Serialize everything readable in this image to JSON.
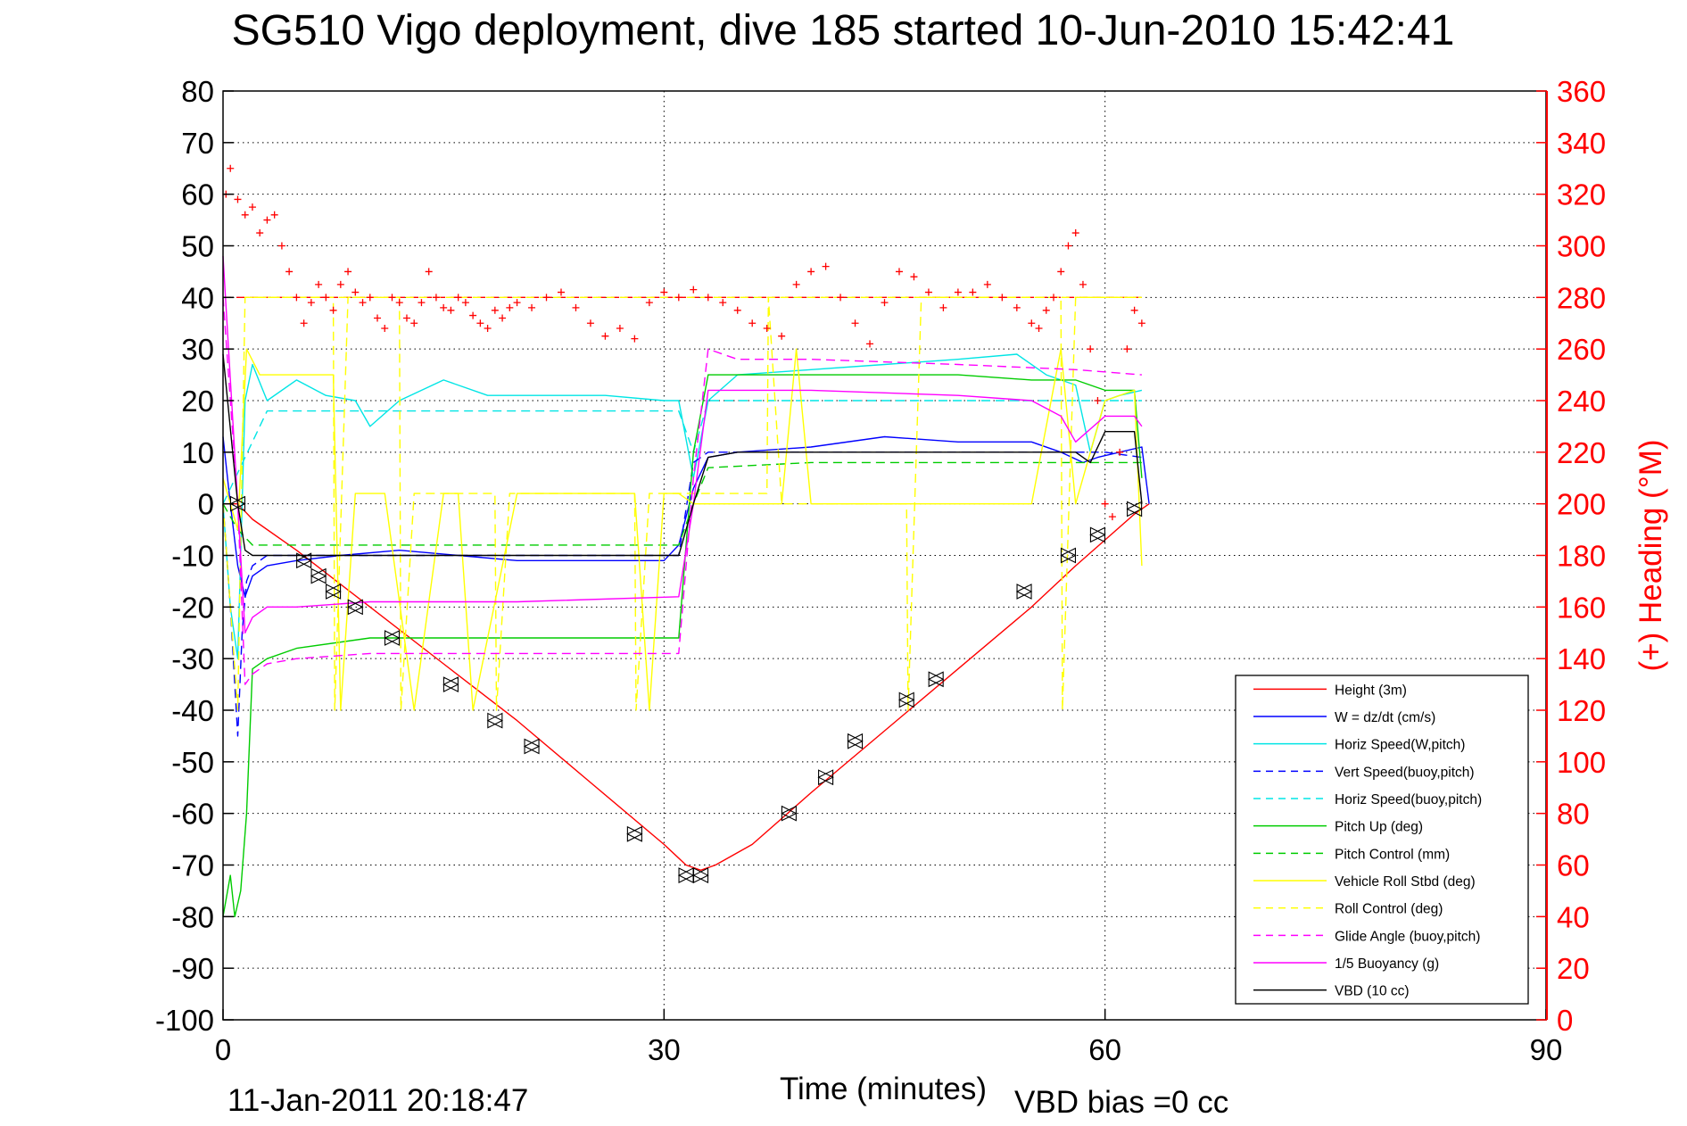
{
  "chart_data": {
    "type": "line",
    "title": "SG510 Vigo deployment, dive 185 started 10-Jun-2010 15:42:41",
    "xlabel": "Time (minutes)",
    "ylabel": "",
    "y2label": "(+) Heading (°M)",
    "xlim": [
      0,
      90
    ],
    "ylim": [
      -100,
      80
    ],
    "y2lim": [
      0,
      360
    ],
    "x_ticks": [
      "0",
      "30",
      "60",
      "90"
    ],
    "y_ticks": [
      "80",
      "70",
      "60",
      "50",
      "40",
      "30",
      "20",
      "10",
      "0",
      "-10",
      "-20",
      "-30",
      "-40",
      "-50",
      "-60",
      "-70",
      "-80",
      "-90",
      "-100"
    ],
    "y2_ticks": [
      "360",
      "340",
      "320",
      "300",
      "280",
      "260",
      "240",
      "220",
      "200",
      "180",
      "160",
      "140",
      "120",
      "100",
      "80",
      "60",
      "40",
      "20",
      "0"
    ],
    "grid": true,
    "legend_position": "bottom-right",
    "footer_left": "11-Jan-2011 20:18:47",
    "footer_right": "VBD bias =0 cc",
    "series": [
      {
        "name": "Height (3m)",
        "color": "#ff0000",
        "style": "solid",
        "x": [
          0,
          1,
          2,
          5,
          10,
          15,
          20,
          25,
          30,
          31.5,
          32.5,
          33.5,
          36,
          40,
          45,
          50,
          55,
          58,
          60,
          62,
          63
        ],
        "y": [
          0,
          0,
          -3,
          -9,
          -20,
          -31,
          -42,
          -54,
          -66,
          -70,
          -71,
          -70,
          -66,
          -56,
          -44,
          -32,
          -20,
          -12,
          -7,
          -2,
          0
        ]
      },
      {
        "name": "W = dz/dt (cm/s)",
        "color": "#0000ff",
        "style": "solid",
        "x": [
          0,
          0.5,
          1,
          1.5,
          2,
          3,
          5,
          8,
          12,
          16,
          20,
          25,
          30,
          31,
          32,
          33,
          35,
          40,
          45,
          50,
          55,
          57,
          58.5,
          59.5,
          61,
          62.5,
          63
        ],
        "y": [
          13,
          0,
          -12,
          -18,
          -14,
          -12,
          -11,
          -10,
          -9,
          -10,
          -11,
          -11,
          -11,
          -8,
          3,
          9,
          10,
          11,
          13,
          12,
          12,
          10,
          8,
          9,
          10,
          11,
          0
        ]
      },
      {
        "name": "Horiz Speed(W,pitch)",
        "color": "#00e5e5",
        "style": "solid",
        "x": [
          0,
          0.5,
          1,
          1.5,
          2,
          3,
          5,
          7,
          9,
          10,
          12,
          15,
          18,
          22,
          26,
          30,
          31,
          32,
          33,
          35,
          40,
          45,
          50,
          54,
          56,
          58,
          59,
          60,
          61,
          62.5
        ],
        "y": [
          0,
          -20,
          -30,
          20,
          27,
          20,
          24,
          21,
          20,
          15,
          20,
          24,
          21,
          21,
          21,
          20,
          20,
          5,
          20,
          25,
          26,
          27,
          28,
          29,
          25,
          23,
          10,
          20,
          21,
          22
        ]
      },
      {
        "name": "Vert Speed(buoy,pitch)",
        "color": "#0000ff",
        "style": "dashed",
        "x": [
          0,
          0.5,
          1,
          1.3,
          1.6,
          2,
          3,
          5,
          10,
          20,
          31,
          32,
          33,
          35,
          40,
          50,
          58,
          60,
          62.5
        ],
        "y": [
          0,
          -20,
          -45,
          -25,
          -15,
          -12,
          -10,
          -10,
          -10,
          -10,
          -10,
          8,
          10,
          10,
          10,
          10,
          10,
          10,
          9
        ]
      },
      {
        "name": "Horiz Speed(buoy,pitch)",
        "color": "#00e5e5",
        "style": "dashed",
        "x": [
          0,
          3,
          10,
          20,
          31,
          32,
          33,
          40,
          50,
          58,
          62.5
        ],
        "y": [
          0,
          18,
          18,
          18,
          18,
          10,
          20,
          20,
          20,
          20,
          20
        ]
      },
      {
        "name": "Pitch Up (deg)",
        "color": "#00cc00",
        "style": "solid",
        "x": [
          0,
          0.5,
          0.8,
          1.2,
          1.6,
          2,
          3,
          5,
          10,
          15,
          20,
          25,
          30,
          31,
          32,
          33,
          35,
          40,
          45,
          50,
          55,
          58,
          60,
          62,
          62.5
        ],
        "y": [
          -80,
          -72,
          -80,
          -75,
          -60,
          -32,
          -30,
          -28,
          -26,
          -26,
          -26,
          -26,
          -26,
          -26,
          10,
          25,
          25,
          25,
          25,
          25,
          24,
          24,
          22,
          22,
          5
        ]
      },
      {
        "name": "Pitch Control (mm)",
        "color": "#00cc00",
        "style": "dashed",
        "x": [
          0,
          1,
          2,
          10,
          20,
          31,
          32,
          33,
          40,
          50,
          58,
          62.5
        ],
        "y": [
          0,
          -5,
          -8,
          -8,
          -8,
          -8,
          0,
          7,
          8,
          8,
          8,
          8
        ]
      },
      {
        "name": "Vehicle Roll Stbd (deg)",
        "color": "#ffff00",
        "style": "solid",
        "x": [
          0,
          1,
          1.6,
          2.5,
          5,
          7.5,
          8,
          9,
          10,
          11,
          13,
          15,
          16,
          17,
          20,
          25,
          28,
          29,
          30,
          31,
          32,
          33,
          36,
          38,
          39,
          40,
          42,
          45,
          47,
          50,
          55,
          57,
          58,
          60,
          62,
          62.5
        ],
        "y": [
          5,
          -5,
          30,
          25,
          25,
          25,
          -40,
          2,
          2,
          2,
          -40,
          2,
          2,
          -40,
          2,
          2,
          2,
          -40,
          2,
          2,
          0,
          0,
          0,
          0,
          30,
          0,
          0,
          0,
          0,
          0,
          0,
          30,
          0,
          20,
          22,
          -12
        ]
      },
      {
        "name": "Roll Control (deg)",
        "color": "#ffff00",
        "style": "dashed",
        "x": [
          0,
          1,
          1.5,
          7.5,
          7.6,
          8.5,
          9,
          12,
          12.1,
          13,
          14,
          18.5,
          18.6,
          19.5,
          20,
          28,
          28.1,
          29,
          30,
          37,
          37.1,
          38,
          40,
          46.5,
          46.6,
          47.5,
          48,
          57,
          57.1,
          58,
          59,
          62.5
        ],
        "y": [
          0,
          -40,
          40,
          40,
          -40,
          40,
          40,
          40,
          -40,
          2,
          2,
          2,
          -40,
          2,
          2,
          2,
          -40,
          2,
          2,
          2,
          40,
          0,
          0,
          0,
          -40,
          40,
          40,
          40,
          -40,
          40,
          40,
          40
        ]
      },
      {
        "name": "Glide Angle (buoy,pitch)",
        "color": "#ff00ff",
        "style": "dashed",
        "x": [
          0,
          1,
          1.5,
          2,
          3,
          5,
          10,
          20,
          31,
          32,
          33,
          35,
          40,
          50,
          58,
          62.5
        ],
        "y": [
          40,
          0,
          -35,
          -33,
          -31,
          -30,
          -29,
          -29,
          -29,
          5,
          30,
          28,
          28,
          27,
          26,
          25
        ]
      },
      {
        "name": "1/5 Buoyancy (g)",
        "color": "#ff00ff",
        "style": "solid",
        "x": [
          0,
          1,
          1.5,
          2,
          3,
          5,
          10,
          20,
          31,
          32,
          33,
          40,
          50,
          55,
          57,
          58,
          60,
          62,
          62.5
        ],
        "y": [
          48,
          0,
          -25,
          -22,
          -20,
          -20,
          -19,
          -19,
          -18,
          0,
          22,
          22,
          21,
          20,
          17,
          12,
          17,
          17,
          15
        ]
      },
      {
        "name": "VBD (10 cc)",
        "color": "#000000",
        "style": "solid",
        "x": [
          0,
          1,
          1.5,
          2,
          10,
          20,
          30,
          31,
          32,
          33,
          35,
          40,
          50,
          58,
          59,
          60,
          62,
          62.5
        ],
        "y": [
          29,
          0,
          -9,
          -10,
          -10,
          -10,
          -10,
          -10,
          0,
          9,
          10,
          10,
          10,
          10,
          8,
          14,
          14,
          0
        ]
      }
    ],
    "reference_lines": [
      {
        "axis": "y2",
        "value": 280,
        "color": "#ff0000",
        "style": "dashed",
        "x": [
          0,
          62.5
        ]
      },
      {
        "axis": "y",
        "value": 40,
        "color": "#ffff00",
        "style": "dashed",
        "x": [
          1.5,
          62.5
        ]
      }
    ],
    "heading_markers": {
      "color": "#ff0000",
      "marker": "+",
      "axis": "y2",
      "x": [
        0.2,
        0.5,
        1,
        1.5,
        2,
        2.5,
        3,
        3.5,
        4,
        4.5,
        5,
        5.5,
        6,
        6.5,
        7,
        7.5,
        8,
        8.5,
        9,
        9.5,
        10,
        10.5,
        11,
        11.5,
        12,
        12.5,
        13,
        13.5,
        14,
        14.5,
        15,
        15.5,
        16,
        16.5,
        17,
        17.5,
        18,
        18.5,
        19,
        19.5,
        20,
        21,
        22,
        23,
        24,
        25,
        26,
        27,
        28,
        29,
        30,
        31,
        32,
        33,
        34,
        35,
        36,
        37,
        38,
        39,
        40,
        41,
        42,
        43,
        44,
        45,
        46,
        47,
        48,
        49,
        50,
        51,
        52,
        53,
        54,
        55,
        55.5,
        56,
        56.5,
        57,
        57.5,
        58,
        58.5,
        59,
        59.5,
        60,
        60.5,
        61,
        61.5,
        62,
        62.5
      ],
      "y": [
        320,
        330,
        318,
        312,
        315,
        305,
        310,
        312,
        300,
        290,
        280,
        270,
        278,
        285,
        280,
        275,
        285,
        290,
        282,
        278,
        280,
        272,
        268,
        280,
        278,
        272,
        270,
        278,
        290,
        280,
        276,
        275,
        280,
        278,
        273,
        270,
        268,
        275,
        272,
        276,
        278,
        276,
        280,
        282,
        276,
        270,
        265,
        268,
        264,
        278,
        282,
        280,
        283,
        280,
        278,
        275,
        270,
        268,
        265,
        285,
        290,
        292,
        280,
        270,
        262,
        278,
        290,
        288,
        282,
        276,
        282,
        282,
        285,
        280,
        276,
        270,
        268,
        275,
        280,
        290,
        300,
        305,
        285,
        260,
        240,
        200,
        195,
        220,
        260,
        275,
        270
      ]
    },
    "ladder_markers": {
      "color": "#000000",
      "marker": "triangles",
      "x": [
        1,
        5.5,
        6.5,
        7.5,
        9,
        11.5,
        15.5,
        18.5,
        21,
        28,
        31.5,
        32.5,
        38.5,
        41,
        43,
        46.5,
        48.5,
        54.5,
        57.5,
        59.5,
        62
      ],
      "y": [
        0,
        -11,
        -14,
        -17,
        -20,
        -26,
        -35,
        -42,
        -47,
        -64,
        -72,
        -72,
        -60,
        -53,
        -46,
        -38,
        -34,
        -17,
        -10,
        -6,
        -1
      ]
    }
  }
}
